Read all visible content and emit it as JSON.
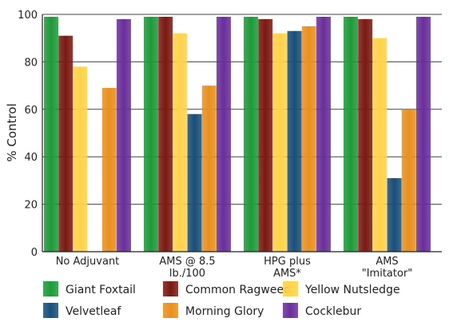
{
  "chart_data": {
    "type": "bar",
    "title": "",
    "xlabel": "",
    "ylabel": "% Control",
    "ylim": [
      0,
      100
    ],
    "yticks": [
      0,
      20,
      40,
      60,
      80,
      100
    ],
    "grid": true,
    "legend_placement": "bottom",
    "categories": [
      [
        "No Adjuvant"
      ],
      [
        "AMS @ 8.5",
        "lb./100"
      ],
      [
        "HPG plus",
        "AMS*"
      ],
      [
        "AMS",
        "\"Imitator\""
      ]
    ],
    "series": [
      {
        "name": "Giant Foxtail",
        "color": "#1e9a3a",
        "values": [
          99,
          99,
          99,
          99
        ]
      },
      {
        "name": "Common Ragweed",
        "color": "#7a1a12",
        "values": [
          91,
          99,
          98,
          98
        ]
      },
      {
        "name": "Yellow Nutsledge",
        "color": "#ffd24a",
        "values": [
          78,
          92,
          92,
          90
        ]
      },
      {
        "name": "Velvetleaf",
        "color": "#1a4f7a",
        "values": [
          0,
          58,
          93,
          31
        ]
      },
      {
        "name": "Morning Glory",
        "color": "#e8901f",
        "values": [
          69,
          70,
          95,
          60
        ]
      },
      {
        "name": "Cocklebur",
        "color": "#6a2f9a",
        "values": [
          98,
          99,
          99,
          99
        ]
      }
    ]
  }
}
